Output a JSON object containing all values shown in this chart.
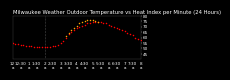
{
  "title": "Milwaukee Weather Outdoor Temperature vs Heat Index per Minute (24 Hours)",
  "bg_color": "#000000",
  "text_color": "#ffffff",
  "plot_bg": "#000000",
  "temp_color": "#ff0000",
  "heat_color": "#ffa500",
  "temp_x": [
    0,
    10,
    20,
    30,
    40,
    50,
    60,
    70,
    80,
    90,
    100,
    110,
    120,
    130,
    140,
    150,
    160,
    170,
    180,
    190,
    200,
    210,
    220,
    230,
    240,
    250,
    260,
    270,
    280,
    290,
    300,
    310,
    320,
    330,
    340,
    350,
    360,
    370,
    380,
    390,
    400,
    410,
    420,
    430,
    440,
    450,
    460,
    470,
    480
  ],
  "temp_y": [
    55,
    54,
    54,
    53,
    53,
    52,
    52,
    52,
    51,
    51,
    51,
    51,
    51,
    51,
    51,
    52,
    52,
    53,
    55,
    57,
    60,
    63,
    65,
    67,
    69,
    70,
    71,
    72,
    73,
    73,
    74,
    74,
    74,
    74,
    73,
    73,
    72,
    71,
    70,
    69,
    68,
    67,
    66,
    64,
    63,
    62,
    60,
    59,
    58
  ],
  "heat_x": [
    200,
    210,
    220,
    230,
    240,
    250,
    260,
    270,
    280,
    290,
    300,
    310,
    320
  ],
  "heat_y": [
    61,
    64,
    67,
    69,
    71,
    73,
    74,
    75,
    76,
    76,
    76,
    75,
    74
  ],
  "vline_x": 120,
  "xmin": 0,
  "xmax": 480,
  "ymin": 40,
  "ymax": 80,
  "yticks": [
    45,
    50,
    55,
    60,
    65,
    70,
    75,
    80
  ],
  "dot_size": 1.2,
  "title_fontsize": 3.8,
  "tick_fontsize": 3.0,
  "xtick_step": 30
}
